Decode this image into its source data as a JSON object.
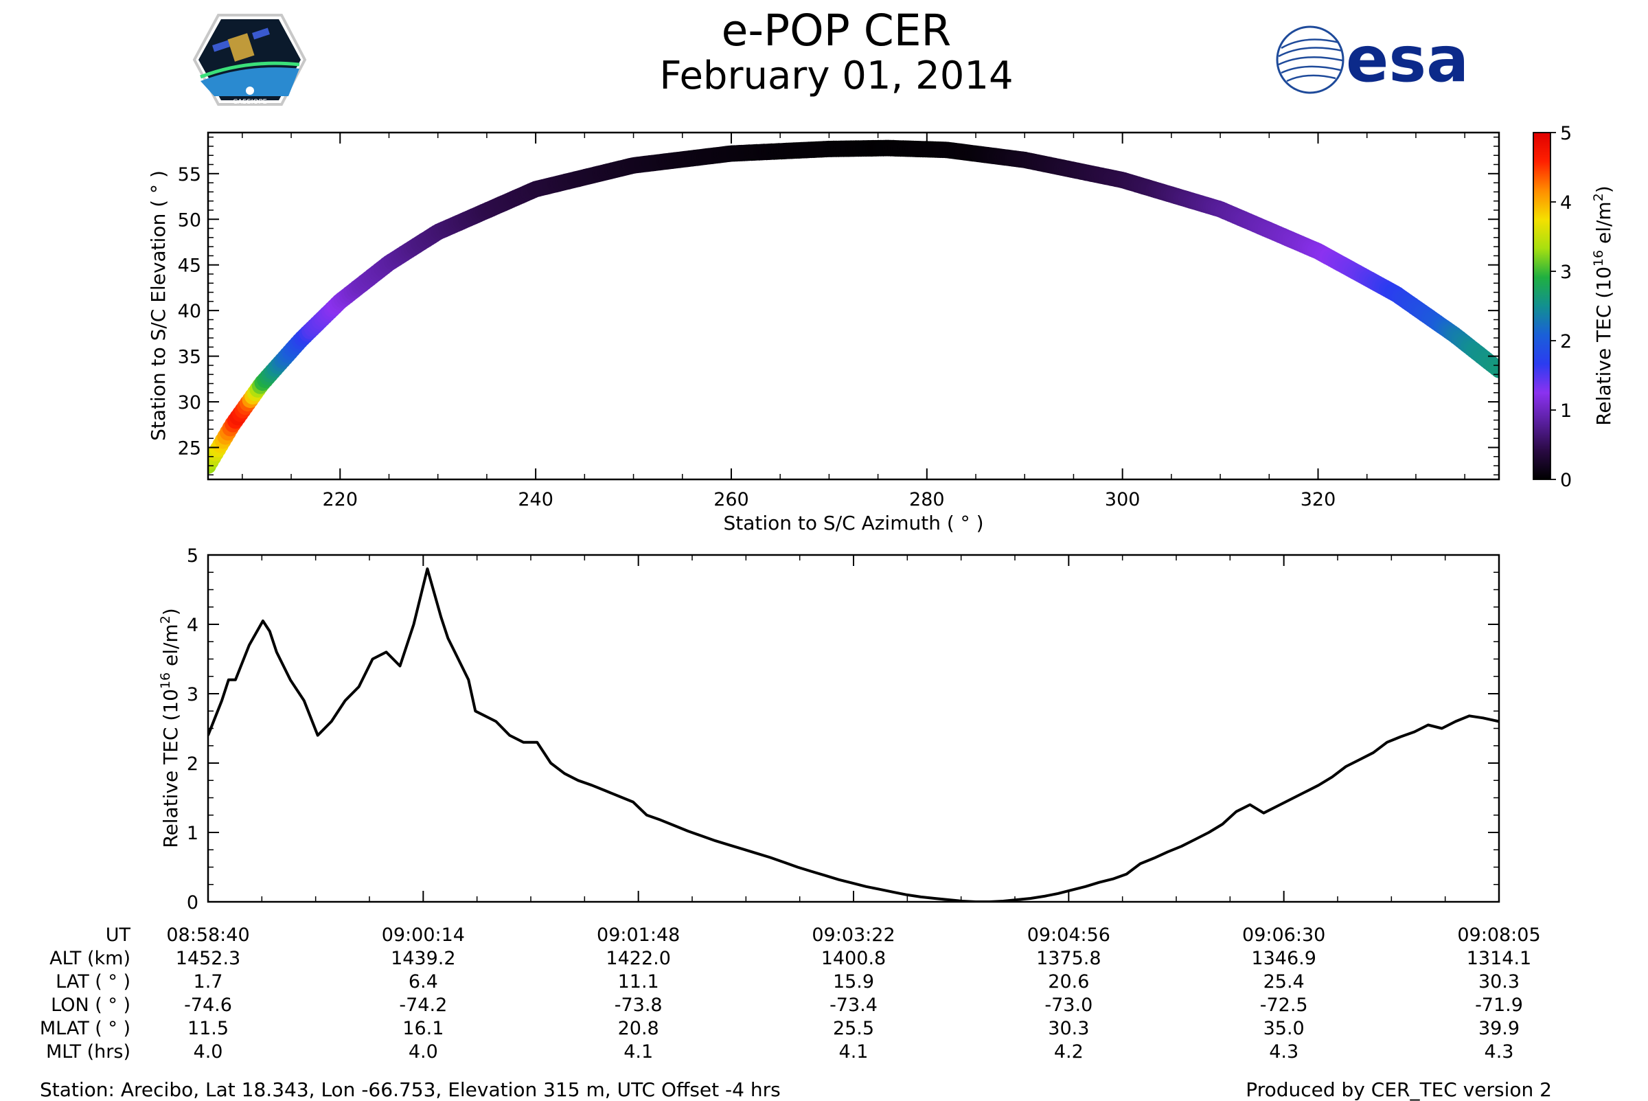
{
  "header": {
    "title": "e-POP CER",
    "date": "February 01, 2014",
    "logo_left_text": "CASSIOPE",
    "logo_right_text": "esa"
  },
  "colors": {
    "colormap": [
      "#000000",
      "#2a0a44",
      "#5a1fa0",
      "#8b32f0",
      "#2b3cf0",
      "#1a60d8",
      "#129090",
      "#20b040",
      "#a8e010",
      "#f5e000",
      "#ff8c00",
      "#ff2000",
      "#e00000"
    ],
    "line": "#000000"
  },
  "chart_data": [
    {
      "type": "scatter",
      "xlabel": "Station to S/C Azimuth ( ° )",
      "ylabel": "Station to S/C Elevation ( ° )",
      "xlim": [
        206.5,
        338.5
      ],
      "ylim": [
        21.5,
        59.5
      ],
      "xticks": [
        220,
        240,
        260,
        280,
        300,
        320
      ],
      "yticks": [
        25,
        30,
        35,
        40,
        45,
        50,
        55
      ],
      "colorbar": {
        "label": "Relative TEC (10¹⁶ el/m²)",
        "range": [
          0,
          5
        ],
        "ticks": [
          0,
          1,
          2,
          3,
          4,
          5
        ]
      },
      "track": {
        "azimuth": [
          206.5,
          209,
          212,
          216,
          220,
          225,
          230,
          240,
          250,
          260,
          270,
          276,
          282,
          290,
          300,
          310,
          320,
          328,
          334,
          338.5
        ],
        "elevation": [
          23.0,
          27.5,
          32.0,
          36.8,
          41.0,
          45.2,
          48.6,
          53.3,
          55.9,
          57.2,
          57.7,
          57.8,
          57.6,
          56.5,
          54.3,
          51.1,
          46.5,
          41.8,
          37.3,
          33.5
        ]
      },
      "tec": {
        "azimuth": [
          206.5,
          208,
          209.5,
          210.5,
          212,
          214,
          217,
          222,
          228,
          235,
          245,
          255,
          265,
          275,
          285,
          295,
          303,
          310,
          318,
          324,
          328,
          332,
          334,
          336,
          338.5
        ],
        "value": [
          3.3,
          3.9,
          4.7,
          4.4,
          3.0,
          2.3,
          1.5,
          1.0,
          0.7,
          0.45,
          0.25,
          0.12,
          0.05,
          0.02,
          0.06,
          0.3,
          0.5,
          0.8,
          1.1,
          1.4,
          1.7,
          2.0,
          2.3,
          2.5,
          2.6
        ]
      }
    },
    {
      "type": "line",
      "xlabel": "",
      "ylabel": "Relative TEC (10¹⁶ el/m²)",
      "ylim": [
        0,
        5
      ],
      "yticks": [
        0,
        1,
        2,
        3,
        4,
        5
      ],
      "x_unit": "seconds from 08:58:40",
      "xlim": [
        0,
        565
      ],
      "series": [
        {
          "t": [
            0,
            6,
            9,
            12,
            18,
            24,
            27,
            30,
            36,
            42,
            48,
            54,
            60,
            63,
            66,
            72,
            78,
            84,
            90,
            96,
            102,
            105,
            108,
            114,
            117,
            120,
            126,
            132,
            138,
            144,
            150,
            156,
            162,
            168,
            174,
            180,
            186,
            192,
            198,
            204,
            210,
            216,
            222,
            228,
            234,
            240,
            246,
            252,
            258,
            264,
            270,
            276,
            282,
            288,
            294,
            300,
            306,
            312,
            318,
            324,
            330,
            336,
            342,
            348,
            354,
            360,
            366,
            372,
            378,
            384,
            390,
            396,
            402,
            408,
            414,
            420,
            426,
            432,
            438,
            444,
            450,
            456,
            462,
            468,
            474,
            480,
            486,
            492,
            498,
            504,
            510,
            516,
            522,
            528,
            534,
            540,
            546,
            552,
            558,
            565
          ],
          "value": [
            2.4,
            2.9,
            3.2,
            3.2,
            3.7,
            4.05,
            3.9,
            3.6,
            3.2,
            2.9,
            2.4,
            2.6,
            2.9,
            3.0,
            3.1,
            3.5,
            3.6,
            3.4,
            4.0,
            4.8,
            4.1,
            3.8,
            3.6,
            3.2,
            2.75,
            2.7,
            2.6,
            2.4,
            2.3,
            2.3,
            2.0,
            1.85,
            1.75,
            1.68,
            1.6,
            1.52,
            1.44,
            1.25,
            1.18,
            1.1,
            1.02,
            0.95,
            0.88,
            0.82,
            0.76,
            0.7,
            0.64,
            0.57,
            0.5,
            0.44,
            0.38,
            0.32,
            0.27,
            0.22,
            0.18,
            0.14,
            0.1,
            0.07,
            0.05,
            0.03,
            0.01,
            0.0,
            0.0,
            0.01,
            0.03,
            0.05,
            0.08,
            0.12,
            0.17,
            0.22,
            0.28,
            0.33,
            0.4,
            0.55,
            0.63,
            0.72,
            0.8,
            0.9,
            1.0,
            1.12,
            1.3,
            1.4,
            1.28,
            1.38,
            1.48,
            1.58,
            1.68,
            1.8,
            1.95,
            2.05,
            2.15,
            2.3,
            2.38,
            2.45,
            2.55,
            2.5,
            2.6,
            2.68,
            2.65,
            2.6
          ]
        }
      ],
      "minor_tick_count": 24
    }
  ],
  "ephemeris": {
    "row_labels": [
      "UT",
      "ALT (km)",
      "LAT ( ° )",
      "LON ( ° )",
      "MLAT ( ° )",
      "MLT (hrs)"
    ],
    "columns": [
      [
        "08:58:40",
        "1452.3",
        "1.7",
        "-74.6",
        "11.5",
        "4.0"
      ],
      [
        "09:00:14",
        "1439.2",
        "6.4",
        "-74.2",
        "16.1",
        "4.0"
      ],
      [
        "09:01:48",
        "1422.0",
        "11.1",
        "-73.8",
        "20.8",
        "4.1"
      ],
      [
        "09:03:22",
        "1400.8",
        "15.9",
        "-73.4",
        "25.5",
        "4.1"
      ],
      [
        "09:04:56",
        "1375.8",
        "20.6",
        "-73.0",
        "30.3",
        "4.2"
      ],
      [
        "09:06:30",
        "1346.9",
        "25.4",
        "-72.5",
        "35.0",
        "4.3"
      ],
      [
        "09:08:05",
        "1314.1",
        "30.3",
        "-71.9",
        "39.9",
        "4.3"
      ]
    ]
  },
  "footer": {
    "station": "Station: Arecibo, Lat 18.343, Lon -66.753, Elevation 315 m, UTC Offset -4 hrs",
    "producer": "Produced by CER_TEC version 2"
  }
}
